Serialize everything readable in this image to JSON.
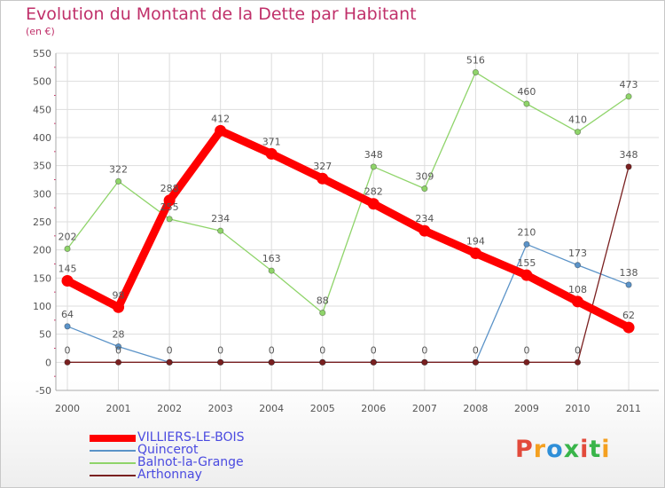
{
  "chart_data": {
    "type": "line",
    "title": "Evolution du Montant de la Dette par Habitant",
    "unit_label": "(en €)",
    "xlabel": "",
    "ylabel": "",
    "ylim": [
      -50,
      550
    ],
    "y_ticks": [
      -50,
      0,
      50,
      100,
      150,
      200,
      250,
      300,
      350,
      400,
      450,
      500,
      550
    ],
    "grid": true,
    "legend_position": "bottom-left",
    "categories": [
      "2000",
      "2001",
      "2002",
      "2003",
      "2004",
      "2005",
      "2006",
      "2007",
      "2008",
      "2009",
      "2010",
      "2011"
    ],
    "series": [
      {
        "name": "VILLIERS-LE-BOIS",
        "color": "#ff0000",
        "values": [
          145,
          98,
          288,
          412,
          371,
          327,
          282,
          234,
          194,
          155,
          108,
          62
        ],
        "labels": [
          "145",
          "98",
          "288",
          "412",
          "371",
          "327",
          "282",
          "234",
          "194",
          "155",
          "108",
          "62"
        ]
      },
      {
        "name": "Quincerot",
        "color": "#5b93c8",
        "values": [
          64,
          28,
          0,
          0,
          0,
          0,
          0,
          0,
          0,
          210,
          173,
          138
        ],
        "labels": [
          "64",
          "28",
          "0",
          "0",
          "0",
          "0",
          "0",
          "0",
          "0",
          "210",
          "173",
          "138"
        ]
      },
      {
        "name": "Balnot-la-Grange",
        "color": "#8fd46a",
        "values": [
          202,
          322,
          255,
          234,
          163,
          88,
          348,
          309,
          516,
          460,
          410,
          473
        ],
        "labels": [
          "202",
          "322",
          "255",
          "234",
          "163",
          "88",
          "348",
          "309",
          "516",
          "460",
          "410",
          "473"
        ]
      },
      {
        "name": "Arthonnay",
        "color": "#7a2020",
        "values": [
          0,
          0,
          0,
          0,
          0,
          0,
          0,
          0,
          0,
          0,
          0,
          348
        ],
        "labels": [
          "0",
          "0",
          "",
          "",
          "",
          "",
          "",
          "",
          "",
          "0",
          "0",
          "348"
        ]
      }
    ]
  },
  "branding": {
    "logo_text": "Proxiti",
    "logo_colors": [
      "#e24a3b",
      "#f4a020",
      "#2f8fd8",
      "#39b54a",
      "#e24a3b",
      "#39b54a",
      "#f4a020"
    ]
  }
}
